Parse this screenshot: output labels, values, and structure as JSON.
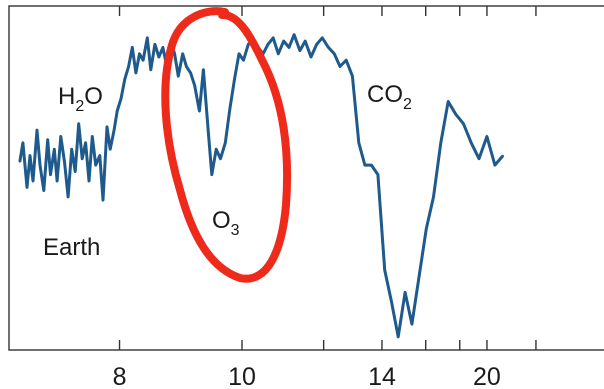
{
  "chart_data": {
    "type": "line",
    "title": "",
    "xlabel": "",
    "ylabel": "",
    "x_scale": "reciprocal",
    "x_ticks": [
      {
        "value": 8,
        "label": "8"
      },
      {
        "value": 10,
        "label": "10"
      },
      {
        "value": 12,
        "label": ""
      },
      {
        "value": 14,
        "label": "14"
      },
      {
        "value": 16,
        "label": ""
      },
      {
        "value": 18,
        "label": ""
      },
      {
        "value": 20,
        "label": "20"
      },
      {
        "value": 25,
        "label": ""
      }
    ],
    "xlim": [
      6.5,
      28
    ],
    "ylim": [
      0,
      1
    ],
    "grid": false,
    "series": [
      {
        "name": "Earth",
        "color": "#1f5a8c",
        "x": [
          6.88,
          6.91,
          6.95,
          6.98,
          7.01,
          7.05,
          7.08,
          7.12,
          7.16,
          7.19,
          7.23,
          7.26,
          7.3,
          7.34,
          7.38,
          7.42,
          7.46,
          7.5,
          7.54,
          7.58,
          7.62,
          7.66,
          7.7,
          7.75,
          7.79,
          7.84,
          7.88,
          7.93,
          7.97,
          8.02,
          8.07,
          8.12,
          8.17,
          8.22,
          8.27,
          8.32,
          8.38,
          8.43,
          8.49,
          8.55,
          8.61,
          8.67,
          8.73,
          8.79,
          8.85,
          8.92,
          8.98,
          9.05,
          9.12,
          9.2,
          9.27,
          9.35,
          9.42,
          9.5,
          9.58,
          9.67,
          9.76,
          9.85,
          9.94,
          10.03,
          10.13,
          10.23,
          10.34,
          10.45,
          10.56,
          10.68,
          10.8,
          10.93,
          11.06,
          11.19,
          11.34,
          11.48,
          11.64,
          11.8,
          11.96,
          12.14,
          12.32,
          12.5,
          12.7,
          12.91,
          13.13,
          13.35,
          13.59,
          13.84,
          14.11,
          14.39,
          14.68,
          14.99,
          15.31,
          15.66,
          16.03,
          16.42,
          16.83,
          17.27,
          17.74,
          18.25,
          18.79,
          19.37,
          20.0,
          20.67,
          21.4
        ],
        "y": [
          0.56,
          0.62,
          0.48,
          0.58,
          0.5,
          0.66,
          0.55,
          0.47,
          0.63,
          0.52,
          0.6,
          0.5,
          0.64,
          0.56,
          0.45,
          0.6,
          0.53,
          0.68,
          0.57,
          0.62,
          0.5,
          0.64,
          0.55,
          0.58,
          0.44,
          0.67,
          0.6,
          0.66,
          0.72,
          0.76,
          0.82,
          0.86,
          0.92,
          0.84,
          0.9,
          0.88,
          0.95,
          0.85,
          0.93,
          0.89,
          0.92,
          0.86,
          0.94,
          0.9,
          0.83,
          0.9,
          0.86,
          0.84,
          0.8,
          0.72,
          0.85,
          0.67,
          0.52,
          0.6,
          0.57,
          0.62,
          0.73,
          0.82,
          0.9,
          0.88,
          0.93,
          0.94,
          0.92,
          0.9,
          0.93,
          0.95,
          0.9,
          0.94,
          0.92,
          0.96,
          0.91,
          0.94,
          0.89,
          0.93,
          0.95,
          0.92,
          0.9,
          0.86,
          0.88,
          0.83,
          0.62,
          0.55,
          0.55,
          0.52,
          0.22,
          0.12,
          0.01,
          0.15,
          0.05,
          0.2,
          0.35,
          0.45,
          0.62,
          0.75,
          0.71,
          0.68,
          0.62,
          0.57,
          0.64,
          0.55,
          0.58
        ]
      }
    ],
    "annotations": [
      {
        "id": "h2o",
        "text": "H",
        "sub": "2",
        "tail": "O"
      },
      {
        "id": "co2",
        "text": "CO",
        "sub": "2",
        "tail": ""
      },
      {
        "id": "o3",
        "text": "O",
        "sub": "3",
        "tail": ""
      },
      {
        "id": "earth",
        "text": "Earth",
        "sub": "",
        "tail": ""
      }
    ],
    "highlight": {
      "shape": "ellipse",
      "color": "#ee2a1b",
      "around": "o3"
    }
  }
}
